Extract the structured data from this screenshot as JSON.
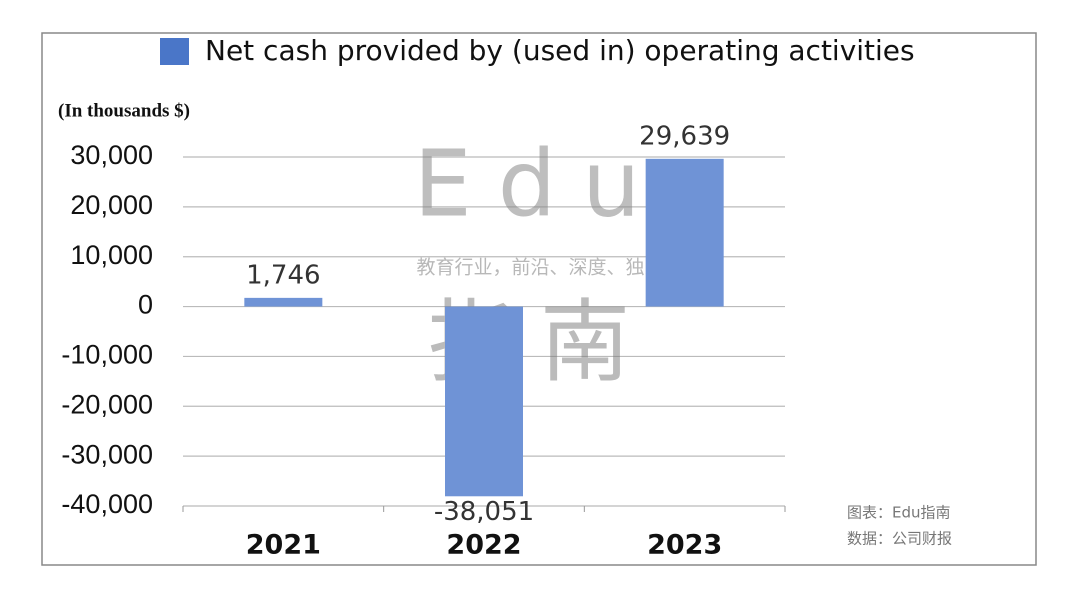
{
  "chart_data": {
    "type": "bar",
    "subtitle": "(In thousands $)",
    "categories": [
      "2021",
      "2022",
      "2023"
    ],
    "series": [
      {
        "name": "Net cash provided by (used in) operating activities",
        "color": "#6f93d6",
        "values": [
          1746,
          -38051,
          29639
        ],
        "value_labels": [
          "1,746",
          "-38,051",
          "29,639"
        ]
      }
    ],
    "ylim": [
      -40000,
      30000
    ],
    "yticks": [
      {
        "value": -40000,
        "label": "-40,000"
      },
      {
        "value": -30000,
        "label": "-30,000"
      },
      {
        "value": -20000,
        "label": "-20,000"
      },
      {
        "value": -10000,
        "label": "-10,000"
      },
      0,
      {
        "value": 10000,
        "label": "10,000"
      },
      {
        "value": 20000,
        "label": "20,000"
      },
      {
        "value": 30000,
        "label": "30,000"
      }
    ],
    "grid": true,
    "legend": "top",
    "watermark": {
      "brand": "Edu",
      "brand_cn": "指南",
      "tagline": "教育行业，前沿、深度、独家"
    },
    "source_notes": [
      "图表：Edu指南",
      "数据：公司财报"
    ]
  }
}
